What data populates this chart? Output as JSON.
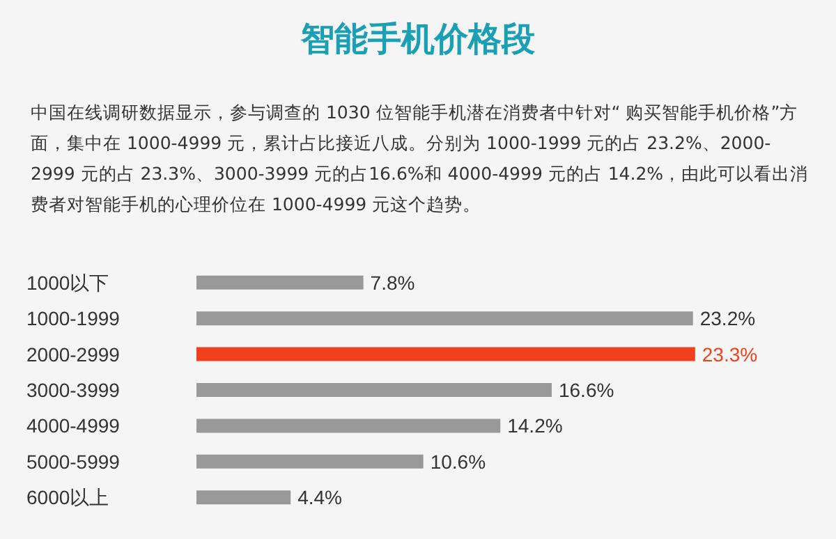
{
  "chart_data": {
    "type": "bar",
    "orientation": "horizontal",
    "title": "智能手机价格段",
    "subtitle": "中国在线调研数据显示，参与调查的 1030 位智能手机潜在消费者中针对“ 购买智能手机价格”方面，集中在 1000-4999 元，累计占比接近八成。分别为 1000-1999 元的占 23.2%、2000-2999 元的占 23.3%、3000-3999 元的占16.6%和 4000-4999 元的占 14.2%，由此可以看出消费者对智能手机的心理价位在 1000-4999 元这个趋势。",
    "categories": [
      "1000以下",
      "1000-1999",
      "2000-2999",
      "3000-3999",
      "4000-4999",
      "5000-5999",
      "6000以上"
    ],
    "values": [
      7.8,
      23.2,
      23.3,
      16.6,
      14.2,
      10.6,
      4.4
    ],
    "value_labels": [
      "7.8%",
      "23.2%",
      "23.3%",
      "16.6%",
      "14.2%",
      "10.6%",
      "4.4%"
    ],
    "colors": [
      "#999999",
      "#999999",
      "#f0401e",
      "#999999",
      "#999999",
      "#999999",
      "#999999"
    ]
  }
}
